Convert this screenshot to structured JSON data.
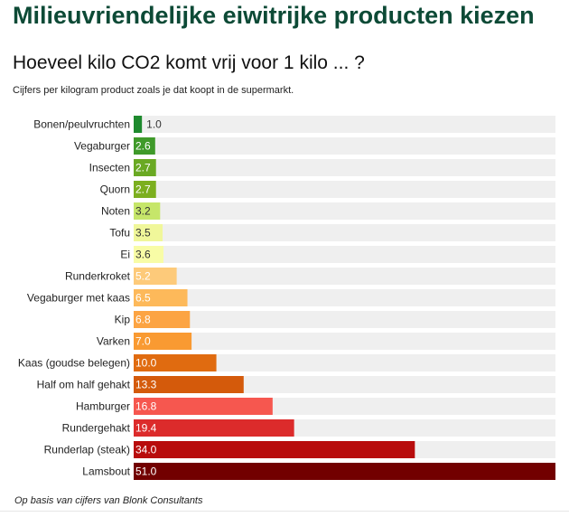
{
  "header": {
    "title": "Milieuvriendelijke eiwitrijke producten kiezen",
    "subtitle": "Hoeveel kilo CO2 komt vrij voor 1 kilo ... ?",
    "description": "Cijfers per kilogram product zoals je dat koopt in de supermarkt."
  },
  "footer": {
    "source": "Op basis van cijfers van Blonk Consultants"
  },
  "colors": {
    "title": "#0d4a36",
    "track": "#efefef"
  },
  "chart_data": {
    "type": "bar",
    "orientation": "horizontal",
    "categories": [
      "Bonen/peulvruchten",
      "Vegaburger",
      "Insecten",
      "Quorn",
      "Noten",
      "Tofu",
      "Ei",
      "Runderkroket",
      "Vegaburger met kaas",
      "Kip",
      "Varken",
      "Kaas (goudse belegen)",
      "Half om half gehakt",
      "Hamburger",
      "Rundergehakt",
      "Runderlap (steak)",
      "Lamsbout"
    ],
    "values": [
      1.0,
      2.6,
      2.7,
      2.7,
      3.2,
      3.5,
      3.6,
      5.2,
      6.5,
      6.8,
      7.0,
      10.0,
      13.3,
      16.8,
      19.4,
      34.0,
      51.0
    ],
    "value_labels": [
      "1.0",
      "2.6",
      "2.7",
      "2.7",
      "3.2",
      "3.5",
      "3.6",
      "5.2",
      "6.5",
      "6.8",
      "7.0",
      "10.0",
      "13.3",
      "16.8",
      "19.4",
      "34.0",
      "51.0"
    ],
    "colors": [
      "#1e8a2e",
      "#3f9a2a",
      "#6aa923",
      "#7caf1f",
      "#c6e66a",
      "#f0f79a",
      "#f8fca6",
      "#fdca7a",
      "#fdb95a",
      "#fca443",
      "#f99a32",
      "#e06b10",
      "#d45a0b",
      "#f6574f",
      "#dc2b2b",
      "#b80c0c",
      "#720000"
    ],
    "value_text_colors": [
      "#333333",
      "#ffffff",
      "#ffffff",
      "#ffffff",
      "#333333",
      "#333333",
      "#333333",
      "#ffffff",
      "#ffffff",
      "#ffffff",
      "#ffffff",
      "#ffffff",
      "#ffffff",
      "#ffffff",
      "#ffffff",
      "#ffffff",
      "#ffffff"
    ],
    "xlim": [
      0,
      51
    ],
    "grid": false,
    "legend": "none",
    "title": "Hoeveel kilo CO2 komt vrij voor 1 kilo ... ?",
    "xlabel": "",
    "ylabel": ""
  }
}
